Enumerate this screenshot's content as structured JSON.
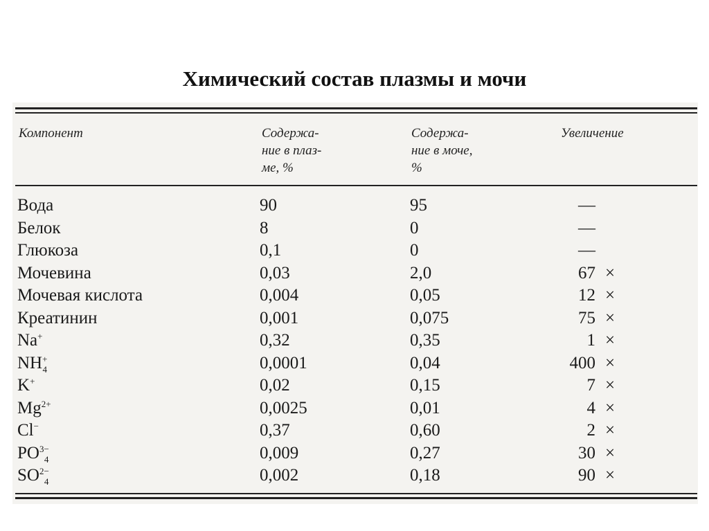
{
  "title": "Химический состав плазмы и мочи",
  "table": {
    "headers": [
      "Компонент",
      "Содержа-\nние в плаз-\nме, %",
      "Содержа-\nние в моче,\n%",
      "Увеличение"
    ],
    "rows": [
      {
        "component": {
          "base": "Вода",
          "sup": "",
          "sub": ""
        },
        "plasma": "90",
        "urine": "95",
        "increase": "—",
        "times": ""
      },
      {
        "component": {
          "base": "Белок",
          "sup": "",
          "sub": ""
        },
        "plasma": "8",
        "urine": "0",
        "increase": "—",
        "times": ""
      },
      {
        "component": {
          "base": "Глюкоза",
          "sup": "",
          "sub": ""
        },
        "plasma": "0,1",
        "urine": "0",
        "increase": "—",
        "times": ""
      },
      {
        "component": {
          "base": "Мочевина",
          "sup": "",
          "sub": ""
        },
        "plasma": "0,03",
        "urine": "2,0",
        "increase": "67",
        "times": "×"
      },
      {
        "component": {
          "base": "Мочевая кислота",
          "sup": "",
          "sub": ""
        },
        "plasma": "0,004",
        "urine": "0,05",
        "increase": "12",
        "times": "×"
      },
      {
        "component": {
          "base": "Креатинин",
          "sup": "",
          "sub": ""
        },
        "plasma": "0,001",
        "urine": "0,075",
        "increase": "75",
        "times": "×"
      },
      {
        "component": {
          "base": "Na",
          "sup": "+",
          "sub": ""
        },
        "plasma": "0,32",
        "urine": "0,35",
        "increase": "1",
        "times": "×"
      },
      {
        "component": {
          "base": "NH",
          "sup": "+",
          "sub": "4"
        },
        "plasma": "0,0001",
        "urine": "0,04",
        "increase": "400",
        "times": "×"
      },
      {
        "component": {
          "base": "K",
          "sup": "+",
          "sub": ""
        },
        "plasma": "0,02",
        "urine": "0,15",
        "increase": "7",
        "times": "×"
      },
      {
        "component": {
          "base": "Mg",
          "sup": "2+",
          "sub": ""
        },
        "plasma": "0,0025",
        "urine": "0,01",
        "increase": "4",
        "times": "×"
      },
      {
        "component": {
          "base": "Cl",
          "sup": "−",
          "sub": ""
        },
        "plasma": "0,37",
        "urine": "0,60",
        "increase": "2",
        "times": "×"
      },
      {
        "component": {
          "base": "PO",
          "sup": "3−",
          "sub": "4"
        },
        "plasma": "0,009",
        "urine": "0,27",
        "increase": "30",
        "times": "×"
      },
      {
        "component": {
          "base": "SO",
          "sup": "2−",
          "sub": "4"
        },
        "plasma": "0,002",
        "urine": "0,18",
        "increase": "90",
        "times": "×"
      }
    ]
  }
}
